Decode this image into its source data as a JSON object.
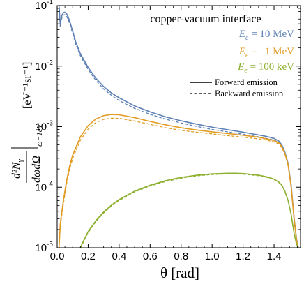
{
  "chart_data": {
    "type": "line",
    "title": "copper-vacuum interface",
    "xlabel": "θ [rad]",
    "ylabel": {
      "numerator": "d²N",
      "numerator_sub": "γ",
      "denominator": "dωdΩ",
      "condition": "ω=1eV",
      "units": "[eV⁻¹sr⁻¹]"
    },
    "xlim": [
      0.0,
      1.5708
    ],
    "ylim": [
      1e-05,
      0.1
    ],
    "yscale": "log",
    "grid": false,
    "legend_position": "top-right",
    "x_ticks": [
      {
        "value": 0.0,
        "label": "0.0"
      },
      {
        "value": 0.2,
        "label": "0.2"
      },
      {
        "value": 0.4,
        "label": "0.4"
      },
      {
        "value": 0.6,
        "label": "0.6"
      },
      {
        "value": 0.8,
        "label": "0.8"
      },
      {
        "value": 1.0,
        "label": "1.0"
      },
      {
        "value": 1.2,
        "label": "1.2"
      },
      {
        "value": 1.4,
        "label": "1.4"
      }
    ],
    "y_ticks": [
      {
        "value": 1e-05,
        "base": "10",
        "exp": "-5"
      },
      {
        "value": 0.0001,
        "base": "10",
        "exp": "-4"
      },
      {
        "value": 0.001,
        "base": "10",
        "exp": "-3"
      },
      {
        "value": 0.01,
        "base": "10",
        "exp": "-2"
      },
      {
        "value": 0.1,
        "base": "10",
        "exp": "-1"
      }
    ],
    "legend": {
      "forward_label": "Forward emission",
      "backward_label": "Backward emission"
    },
    "series": [
      {
        "name": "E_e = 10 MeV",
        "label_var": "E",
        "label_sub": "e",
        "label_val": "= 10 MeV",
        "color": "#5E81B5",
        "forward": {
          "x": [
            0.012,
            0.02,
            0.03,
            0.04,
            0.05,
            0.06,
            0.07,
            0.08,
            0.1,
            0.12,
            0.15,
            0.2,
            0.25,
            0.3,
            0.35,
            0.4,
            0.5,
            0.6,
            0.7,
            0.8,
            0.9,
            1.0,
            1.1,
            1.2,
            1.3,
            1.35,
            1.4,
            1.43,
            1.45,
            1.47,
            1.49,
            1.51,
            1.53,
            1.545,
            1.556
          ],
          "y": [
            0.1,
            0.0495,
            0.0685,
            0.0768,
            0.0775,
            0.074,
            0.066,
            0.056,
            0.038,
            0.025,
            0.016,
            0.0095,
            0.0063,
            0.0046,
            0.0036,
            0.003,
            0.0022,
            0.00175,
            0.00145,
            0.00125,
            0.0011,
            0.00098,
            0.00089,
            0.00081,
            0.00073,
            0.00069,
            0.00064,
            0.00058,
            0.0005,
            0.00038,
            0.00025,
            0.00011,
            3e-05,
            1.4e-05,
            1e-05
          ]
        },
        "backward": {
          "x": [
            0.012,
            0.02,
            0.03,
            0.04,
            0.05,
            0.06,
            0.07,
            0.08,
            0.1,
            0.12,
            0.15,
            0.2,
            0.25,
            0.3,
            0.35,
            0.4,
            0.5,
            0.6,
            0.7,
            0.8,
            0.9,
            1.0,
            1.1,
            1.2,
            1.3,
            1.35,
            1.4,
            1.43,
            1.45,
            1.47,
            1.49,
            1.51,
            1.53,
            1.545,
            1.556
          ],
          "y": [
            0.1,
            0.0455,
            0.0625,
            0.07,
            0.0705,
            0.0675,
            0.06,
            0.051,
            0.035,
            0.023,
            0.0148,
            0.0088,
            0.0058,
            0.0042,
            0.0033,
            0.0027,
            0.002,
            0.0016,
            0.00133,
            0.00115,
            0.00101,
            0.0009,
            0.00082,
            0.00075,
            0.00068,
            0.00064,
            0.0006,
            0.00055,
            0.00048,
            0.00037,
            0.00024,
            0.000105,
            2.9e-05,
            1.35e-05,
            1e-05
          ]
        }
      },
      {
        "name": "E_e = 1 MeV",
        "label_var": "E",
        "label_sub": "e",
        "label_val": "=  1 MeV",
        "color": "#E19C24",
        "forward": {
          "x": [
            0.012,
            0.02,
            0.04,
            0.06,
            0.08,
            0.1,
            0.15,
            0.2,
            0.25,
            0.3,
            0.35,
            0.4,
            0.5,
            0.6,
            0.7,
            0.8,
            0.9,
            1.0,
            1.1,
            1.2,
            1.3,
            1.35,
            1.4,
            1.43,
            1.45,
            1.47,
            1.49,
            1.51,
            1.53,
            1.545,
            1.556
          ],
          "y": [
            1e-05,
            2.5e-05,
            6e-05,
            0.000125,
            0.00022,
            0.00034,
            0.00068,
            0.00104,
            0.00134,
            0.00152,
            0.00159,
            0.00157,
            0.00141,
            0.00122,
            0.00107,
            0.00096,
            0.00088,
            0.00082,
            0.00077,
            0.00072,
            0.00067,
            0.00063,
            0.00059,
            0.00054,
            0.00047,
            0.00036,
            0.00024,
            0.000105,
            2.9e-05,
            1.35e-05,
            1e-05
          ]
        },
        "backward": {
          "x": [
            0.012,
            0.02,
            0.04,
            0.06,
            0.08,
            0.1,
            0.15,
            0.2,
            0.25,
            0.3,
            0.35,
            0.4,
            0.5,
            0.6,
            0.7,
            0.8,
            0.9,
            1.0,
            1.1,
            1.2,
            1.3,
            1.35,
            1.4,
            1.43,
            1.45,
            1.47,
            1.49,
            1.51,
            1.53,
            1.545,
            1.556
          ],
          "y": [
            1e-05,
            2.2e-05,
            5.3e-05,
            0.00011,
            0.000195,
            0.0003,
            0.0006,
            0.00091,
            0.00117,
            0.00132,
            0.00138,
            0.00137,
            0.00124,
            0.00109,
            0.00096,
            0.00087,
            0.00081,
            0.00076,
            0.00071,
            0.00067,
            0.00063,
            0.0006,
            0.00056,
            0.00052,
            0.00045,
            0.00035,
            0.00023,
            0.0001,
            2.8e-05,
            1.3e-05,
            1e-05
          ]
        }
      },
      {
        "name": "E_e = 100 keV",
        "label_var": "E",
        "label_sub": "e",
        "label_val": "= 100 keV",
        "color": "#8FB131",
        "forward": {
          "x": [
            0.15,
            0.17,
            0.2,
            0.25,
            0.3,
            0.35,
            0.4,
            0.5,
            0.6,
            0.7,
            0.8,
            0.9,
            1.0,
            1.1,
            1.15,
            1.2,
            1.3,
            1.35,
            1.4,
            1.43,
            1.45,
            1.47,
            1.49,
            1.51,
            1.53,
            1.545,
            1.556
          ],
          "y": [
            1e-05,
            1.3e-05,
            1.85e-05,
            2.8e-05,
            3.9e-05,
            5.05e-05,
            6.25e-05,
            8.6e-05,
            0.000108,
            0.000128,
            0.000145,
            0.000158,
            0.000166,
            0.00017,
            0.00017,
            0.000168,
            0.000158,
            0.000149,
            0.000136,
            0.000122,
            0.000108,
            8.6e-05,
            6.1e-05,
            3.6e-05,
            1.7e-05,
            1.15e-05,
            1e-05
          ]
        },
        "backward": {
          "x": [
            0.15,
            0.17,
            0.2,
            0.25,
            0.3,
            0.35,
            0.4,
            0.5,
            0.6,
            0.7,
            0.8,
            0.9,
            1.0,
            1.1,
            1.15,
            1.2,
            1.3,
            1.35,
            1.4,
            1.43,
            1.45,
            1.47,
            1.49,
            1.51,
            1.53,
            1.545,
            1.556
          ],
          "y": [
            1e-05,
            1.25e-05,
            1.78e-05,
            2.7e-05,
            3.75e-05,
            4.9e-05,
            6.05e-05,
            8.35e-05,
            0.000105,
            0.000124,
            0.000141,
            0.000154,
            0.000162,
            0.000166,
            0.000166,
            0.000164,
            0.000155,
            0.000146,
            0.000134,
            0.00012,
            0.000106,
            8.4e-05,
            6e-05,
            3.5e-05,
            1.65e-05,
            1.12e-05,
            1e-05
          ]
        }
      }
    ]
  }
}
